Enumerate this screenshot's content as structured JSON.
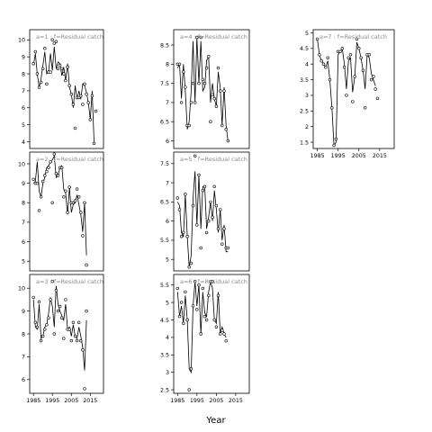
{
  "figure": {
    "xlabel": "Year"
  },
  "chart_data": [
    {
      "type": "line",
      "label": "a=1 : f=Residual catch",
      "ylim": [
        3.6,
        10.6
      ],
      "yticks": [
        4,
        5,
        6,
        7,
        8,
        9,
        10
      ],
      "xlim": [
        1983,
        2022
      ],
      "xticks": [],
      "show_xticks": false,
      "x": [
        1985,
        1986,
        1987,
        1988,
        1989,
        1990,
        1991,
        1992,
        1993,
        1994,
        1995,
        1996,
        1997,
        1998,
        1999,
        2000,
        2001,
        2002,
        2003,
        2004,
        2005,
        2006,
        2007,
        2008,
        2009,
        2010,
        2011,
        2012,
        2013,
        2014,
        2015,
        2016,
        2017,
        2018,
        2019
      ],
      "observed": [
        8.6,
        9.3,
        8.0,
        7.2,
        7.5,
        8.3,
        9.5,
        7.4,
        8.1,
        8.1,
        10.0,
        9.8,
        9.9,
        8.3,
        8.5,
        8.3,
        8.0,
        7.6,
        8.4,
        7.3,
        6.8,
        6.2,
        4.8,
        6.6,
        6.6,
        6.7,
        6.2,
        7.4,
        6.8,
        6.3,
        5.3,
        6.7,
        3.9,
        5.8,
        null
      ],
      "fitted": [
        8.5,
        9.2,
        8.0,
        7.2,
        7.7,
        8.5,
        9.3,
        8.0,
        8.1,
        9.2,
        8.2,
        9.6,
        8.3,
        8.7,
        8.6,
        7.9,
        8.4,
        7.6,
        8.6,
        7.2,
        6.8,
        6.0,
        7.3,
        6.5,
        7.0,
        6.5,
        7.4,
        7.3,
        6.9,
        6.3,
        5.3,
        7.0,
        4.0,
        null,
        null
      ]
    },
    {
      "type": "line",
      "label": "a=2 : f=Residual catch",
      "ylim": [
        4.5,
        10.6
      ],
      "yticks": [
        5,
        6,
        7,
        8,
        9,
        10
      ],
      "xlim": [
        1983,
        2022
      ],
      "xticks": [],
      "show_xticks": false,
      "x": [
        1985,
        1986,
        1987,
        1988,
        1989,
        1990,
        1991,
        1992,
        1993,
        1994,
        1995,
        1996,
        1997,
        1998,
        1999,
        2000,
        2001,
        2002,
        2003,
        2004,
        2005,
        2006,
        2007,
        2008,
        2009,
        2010,
        2011,
        2012,
        2013,
        2014,
        2015,
        2016,
        2017,
        2018,
        2019
      ],
      "observed": [
        9.2,
        9.0,
        9.0,
        7.6,
        8.3,
        9.1,
        9.4,
        9.6,
        9.8,
        10.1,
        8.0,
        10.5,
        9.5,
        9.4,
        9.8,
        9.8,
        8.3,
        8.6,
        7.5,
        8.8,
        8.0,
        8.0,
        8.1,
        8.7,
        8.3,
        7.5,
        6.3,
        8.0,
        4.8,
        null,
        null,
        null,
        null,
        null,
        null
      ],
      "fitted": [
        9.0,
        9.1,
        10.1,
        8.6,
        8.3,
        9.0,
        9.3,
        9.8,
        9.9,
        10.1,
        10.2,
        10.4,
        9.3,
        9.4,
        9.8,
        9.9,
        8.7,
        8.5,
        7.4,
        8.8,
        7.5,
        7.9,
        8.0,
        8.4,
        7.9,
        7.4,
        6.5,
        8.0,
        5.3,
        null,
        null,
        null,
        null,
        null,
        null
      ]
    },
    {
      "type": "line",
      "label": "a=3 : f=Residual catch",
      "ylim": [
        5.4,
        10.6
      ],
      "yticks": [
        6,
        7,
        8,
        9,
        10
      ],
      "xlim": [
        1983,
        2022
      ],
      "xticks": [
        1985,
        1995,
        2005,
        2015
      ],
      "show_xticks": true,
      "x": [
        1985,
        1986,
        1987,
        1988,
        1989,
        1990,
        1991,
        1992,
        1993,
        1994,
        1995,
        1996,
        1997,
        1998,
        1999,
        2000,
        2001,
        2002,
        2003,
        2004,
        2005,
        2006,
        2007,
        2008,
        2009,
        2010,
        2011,
        2012,
        2013,
        2014,
        2015,
        2016,
        2017,
        2018,
        2019
      ],
      "observed": [
        9.6,
        8.5,
        8.3,
        9.4,
        7.7,
        7.9,
        8.2,
        8.4,
        8.7,
        9.5,
        10.3,
        8.0,
        9.9,
        9.0,
        9.2,
        8.7,
        7.8,
        9.5,
        8.2,
        8.2,
        7.7,
        8.5,
        7.9,
        7.7,
        8.5,
        7.7,
        7.3,
        5.6,
        9.0,
        null,
        null,
        null,
        null,
        null,
        null
      ],
      "fitted": [
        9.5,
        8.3,
        8.2,
        9.3,
        7.8,
        7.9,
        8.3,
        8.4,
        8.9,
        9.6,
        9.2,
        8.3,
        10.1,
        9.3,
        9.0,
        8.8,
        8.6,
        9.3,
        8.2,
        8.3,
        7.9,
        8.4,
        7.9,
        7.8,
        8.3,
        7.9,
        7.4,
        6.4,
        8.6,
        null,
        null,
        null,
        null,
        null,
        null
      ]
    },
    {
      "type": "line",
      "label": "a=4 : f=Residual catch",
      "ylim": [
        5.8,
        8.9
      ],
      "yticks": [
        6.0,
        6.5,
        7.0,
        7.5,
        8.0,
        8.5
      ],
      "xlim": [
        1983,
        2022
      ],
      "xticks": [],
      "show_xticks": false,
      "x": [
        1985,
        1986,
        1987,
        1988,
        1989,
        1990,
        1991,
        1992,
        1993,
        1994,
        1995,
        1996,
        1997,
        1998,
        1999,
        2000,
        2001,
        2002,
        2003,
        2004,
        2005,
        2006,
        2007,
        2008,
        2009,
        2010,
        2011,
        2012,
        2013,
        2014,
        2015,
        2016,
        2017,
        2018,
        2019
      ],
      "observed": [
        8.0,
        8.0,
        7.0,
        7.8,
        7.4,
        6.4,
        6.4,
        7.0,
        7.5,
        7.0,
        8.7,
        7.5,
        8.7,
        7.6,
        7.5,
        7.9,
        8.2,
        6.5,
        7.2,
        7.1,
        6.9,
        7.9,
        7.3,
        6.4,
        7.3,
        6.3,
        6.0,
        null,
        null,
        null,
        null,
        null,
        null,
        null,
        null
      ],
      "fitted": [
        7.9,
        8.0,
        7.1,
        8.0,
        7.3,
        6.3,
        6.5,
        7.3,
        8.6,
        7.0,
        8.7,
        7.5,
        8.6,
        7.3,
        7.4,
        8.1,
        8.2,
        7.0,
        7.5,
        7.1,
        6.9,
        7.8,
        7.4,
        6.4,
        7.4,
        6.4,
        6.0,
        null,
        null,
        null,
        null,
        null,
        null,
        null,
        null
      ]
    },
    {
      "type": "line",
      "label": "a=5 : f=Residual catch",
      "ylim": [
        4.7,
        7.8
      ],
      "yticks": [
        5.0,
        5.5,
        6.0,
        6.5,
        7.0,
        7.5
      ],
      "xlim": [
        1983,
        2022
      ],
      "xticks": [],
      "show_xticks": false,
      "x": [
        1985,
        1986,
        1987,
        1988,
        1989,
        1990,
        1991,
        1992,
        1993,
        1994,
        1995,
        1996,
        1997,
        1998,
        1999,
        2000,
        2001,
        2002,
        2003,
        2004,
        2005,
        2006,
        2007,
        2008,
        2009,
        2010,
        2011,
        2012,
        2013,
        2014,
        2015,
        2016,
        2017,
        2018,
        2019
      ],
      "observed": [
        6.6,
        6.3,
        5.6,
        5.7,
        6.7,
        5.6,
        4.8,
        4.9,
        6.4,
        7.7,
        5.9,
        7.2,
        5.3,
        6.8,
        6.9,
        5.7,
        6.0,
        6.5,
        6.1,
        6.9,
        6.4,
        5.8,
        6.3,
        5.4,
        5.8,
        5.3,
        5.3,
        null,
        null,
        null,
        null,
        null,
        null,
        null,
        null
      ],
      "fitted": [
        6.5,
        6.4,
        5.7,
        5.6,
        6.7,
        5.6,
        4.8,
        5.1,
        6.6,
        7.3,
        5.9,
        7.2,
        5.8,
        6.9,
        6.9,
        5.8,
        6.1,
        6.5,
        6.0,
        6.8,
        6.3,
        5.7,
        6.3,
        5.5,
        5.9,
        5.2,
        5.2,
        null,
        null,
        null,
        null,
        null,
        null,
        null,
        null
      ]
    },
    {
      "type": "line",
      "label": "a=6 : f=Residual catch",
      "ylim": [
        2.4,
        5.8
      ],
      "yticks": [
        2.5,
        3.0,
        3.5,
        4.0,
        4.5,
        5.0,
        5.5
      ],
      "xlim": [
        1983,
        2022
      ],
      "xticks": [
        1985,
        1995,
        2005,
        2015
      ],
      "show_xticks": true,
      "x": [
        1985,
        1986,
        1987,
        1988,
        1989,
        1990,
        1991,
        1992,
        1993,
        1994,
        1995,
        1996,
        1997,
        1998,
        1999,
        2000,
        2001,
        2002,
        2003,
        2004,
        2005,
        2006,
        2007,
        2008,
        2009,
        2010,
        2011,
        2012,
        2013,
        2014,
        2015,
        2016,
        2017,
        2018,
        2019
      ],
      "observed": [
        5.4,
        4.6,
        5.0,
        4.4,
        5.3,
        4.5,
        2.5,
        3.1,
        4.9,
        5.6,
        4.8,
        5.5,
        4.1,
        5.4,
        4.6,
        4.5,
        5.2,
        5.6,
        5.6,
        4.5,
        4.3,
        5.2,
        4.1,
        4.2,
        4.1,
        3.9,
        null,
        null,
        null,
        null,
        null,
        null,
        null,
        null,
        null
      ],
      "fitted": [
        5.3,
        4.6,
        4.9,
        4.4,
        5.2,
        4.5,
        3.1,
        3.0,
        4.9,
        5.6,
        4.9,
        5.5,
        4.1,
        5.3,
        4.7,
        4.6,
        5.3,
        5.6,
        5.4,
        4.5,
        4.4,
        5.3,
        4.1,
        4.3,
        4.1,
        4.0,
        null,
        null,
        null,
        null,
        null,
        null,
        null,
        null,
        null
      ]
    },
    {
      "type": "line",
      "label": "a=7 : f=Residual catch",
      "ylim": [
        1.3,
        5.1
      ],
      "yticks": [
        1.5,
        2.0,
        2.5,
        3.0,
        3.5,
        4.0,
        4.5,
        5.0
      ],
      "xlim": [
        1983,
        2022
      ],
      "xticks": [
        1985,
        1995,
        2005,
        2015
      ],
      "show_xticks": true,
      "x": [
        1985,
        1986,
        1987,
        1988,
        1989,
        1990,
        1991,
        1992,
        1993,
        1994,
        1995,
        1996,
        1997,
        1998,
        1999,
        2000,
        2001,
        2002,
        2003,
        2004,
        2005,
        2006,
        2007,
        2008,
        2009,
        2010,
        2011,
        2012,
        2013,
        2014,
        2015,
        2016,
        2017,
        2018,
        2019
      ],
      "observed": [
        4.8,
        4.3,
        4.1,
        4.0,
        3.9,
        4.2,
        3.5,
        2.6,
        1.4,
        1.6,
        4.4,
        4.4,
        4.5,
        3.9,
        3.0,
        4.2,
        4.3,
        2.8,
        3.6,
        4.8,
        4.5,
        4.2,
        3.8,
        2.6,
        4.3,
        4.3,
        3.5,
        3.6,
        3.2,
        2.9,
        null,
        null,
        null,
        null,
        null
      ],
      "fitted": [
        4.8,
        4.3,
        4.1,
        4.0,
        3.9,
        4.1,
        3.5,
        2.6,
        1.4,
        1.5,
        4.3,
        4.4,
        4.5,
        4.0,
        3.2,
        4.1,
        4.2,
        3.1,
        3.6,
        4.7,
        4.5,
        4.2,
        3.8,
        3.2,
        4.3,
        4.2,
        3.7,
        3.5,
        3.3,
        null,
        null,
        null,
        null,
        null,
        null
      ]
    }
  ]
}
